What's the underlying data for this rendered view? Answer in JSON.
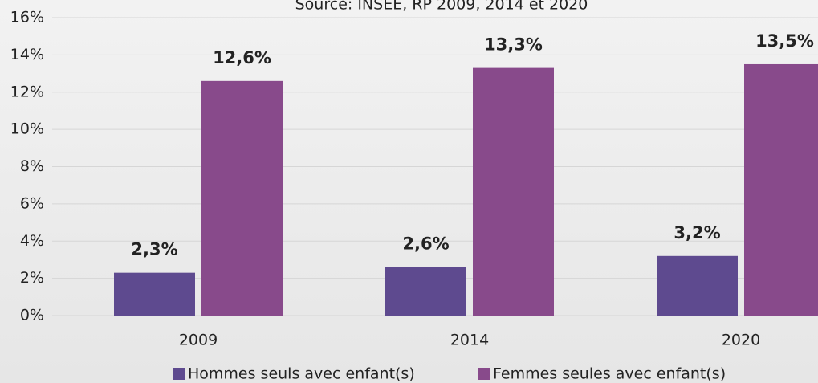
{
  "chart_data": {
    "type": "bar",
    "subtitle": "Source: INSEE, RP 2009, 2014 et 2020",
    "categories": [
      "2009",
      "2014",
      "2020"
    ],
    "series": [
      {
        "name": "Hommes seuls avec enfant(s)",
        "color": "#5e4a8f",
        "values": [
          2.3,
          2.6,
          3.2
        ],
        "value_labels": [
          "2,3%",
          "2,6%",
          "3,2%"
        ]
      },
      {
        "name": "Femmes seules avec enfant(s)",
        "color": "#884a8b",
        "values": [
          12.6,
          13.3,
          13.5
        ],
        "value_labels": [
          "12,6%",
          "13,3%",
          "13,5%"
        ]
      }
    ],
    "ylim": [
      0,
      16
    ],
    "yticks": [
      {
        "value": 0,
        "label": "0%"
      },
      {
        "value": 2,
        "label": "2%"
      },
      {
        "value": 4,
        "label": "4%"
      },
      {
        "value": 6,
        "label": "6%"
      },
      {
        "value": 8,
        "label": "8%"
      },
      {
        "value": 10,
        "label": "10%"
      },
      {
        "value": 12,
        "label": "12%"
      },
      {
        "value": 14,
        "label": "14%"
      },
      {
        "value": 16,
        "label": "16%"
      }
    ],
    "grid": true,
    "legend": "bottom"
  }
}
